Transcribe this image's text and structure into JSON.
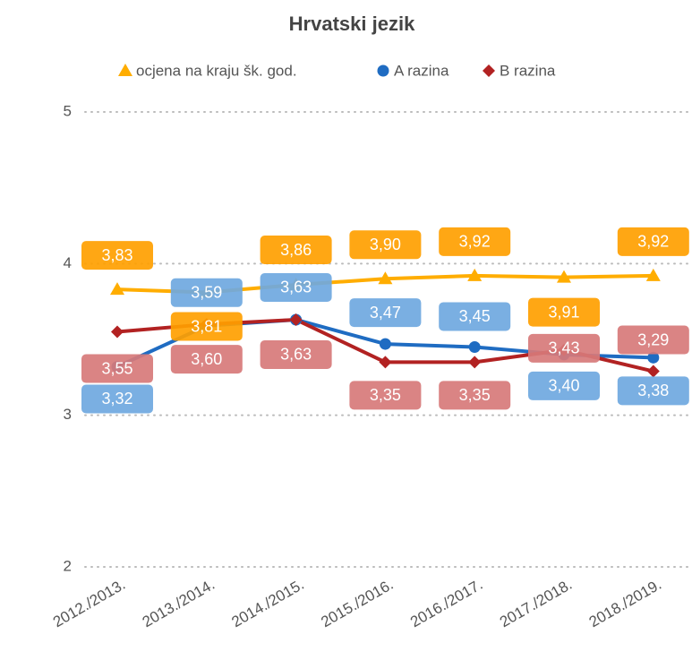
{
  "chart_data": {
    "type": "line",
    "title": "Hrvatski jezik",
    "categories": [
      "2012./2013.",
      "2013./2014.",
      "2014./2015.",
      "2015./2016.",
      "2016./2017.",
      "2017./2018.",
      "2018./2019."
    ],
    "series": [
      {
        "name": "ocjena na kraju šk. god.",
        "color": "#ffad00",
        "label_color": "#ffa000",
        "marker": "triangle",
        "values": [
          3.83,
          3.81,
          3.86,
          3.9,
          3.92,
          3.91,
          3.92
        ],
        "value_labels": [
          "3,83",
          "3,81",
          "3,86",
          "3,90",
          "3,92",
          "3,91",
          "3,92"
        ]
      },
      {
        "name": "A razina",
        "color": "#1f6cc2",
        "label_color": "#6fa8e0",
        "marker": "circle",
        "values": [
          3.32,
          3.59,
          3.63,
          3.47,
          3.45,
          3.4,
          3.38
        ],
        "value_labels": [
          "3,32",
          "3,59",
          "3,63",
          "3,47",
          "3,45",
          "3,40",
          "3,38"
        ]
      },
      {
        "name": "B razina",
        "color": "#b22222",
        "label_color": "#d77a7a",
        "marker": "diamond",
        "values": [
          3.55,
          3.6,
          3.63,
          3.35,
          3.35,
          3.43,
          3.29
        ],
        "value_labels": [
          "3,55",
          "3,60",
          "3,63",
          "3,35",
          "3,35",
          "3,43",
          "3,29"
        ]
      }
    ],
    "ylim": [
      2,
      5
    ],
    "yticks": [
      2,
      3,
      4,
      5
    ],
    "grid": true,
    "legend": "top"
  }
}
